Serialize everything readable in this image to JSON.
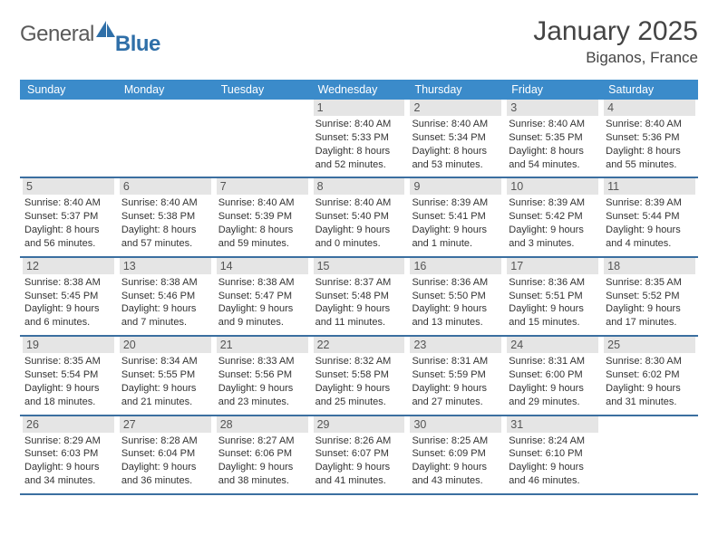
{
  "logo": {
    "general": "General",
    "blue": "Blue"
  },
  "title": "January 2025",
  "location": "Biganos, France",
  "colors": {
    "header_bg": "#3b8bca",
    "header_fg": "#ffffff",
    "daynum_bg": "#e5e5e5",
    "daynum_fg": "#555555",
    "week_border": "#3b6fa0",
    "text": "#333333",
    "logo_gray": "#5a5a5a",
    "logo_blue": "#2f6fa8"
  },
  "day_headers": [
    "Sunday",
    "Monday",
    "Tuesday",
    "Wednesday",
    "Thursday",
    "Friday",
    "Saturday"
  ],
  "weeks": [
    [
      {
        "day": "",
        "sunrise": "",
        "sunset": "",
        "daylight": ""
      },
      {
        "day": "",
        "sunrise": "",
        "sunset": "",
        "daylight": ""
      },
      {
        "day": "",
        "sunrise": "",
        "sunset": "",
        "daylight": ""
      },
      {
        "day": "1",
        "sunrise": "Sunrise: 8:40 AM",
        "sunset": "Sunset: 5:33 PM",
        "daylight": "Daylight: 8 hours and 52 minutes."
      },
      {
        "day": "2",
        "sunrise": "Sunrise: 8:40 AM",
        "sunset": "Sunset: 5:34 PM",
        "daylight": "Daylight: 8 hours and 53 minutes."
      },
      {
        "day": "3",
        "sunrise": "Sunrise: 8:40 AM",
        "sunset": "Sunset: 5:35 PM",
        "daylight": "Daylight: 8 hours and 54 minutes."
      },
      {
        "day": "4",
        "sunrise": "Sunrise: 8:40 AM",
        "sunset": "Sunset: 5:36 PM",
        "daylight": "Daylight: 8 hours and 55 minutes."
      }
    ],
    [
      {
        "day": "5",
        "sunrise": "Sunrise: 8:40 AM",
        "sunset": "Sunset: 5:37 PM",
        "daylight": "Daylight: 8 hours and 56 minutes."
      },
      {
        "day": "6",
        "sunrise": "Sunrise: 8:40 AM",
        "sunset": "Sunset: 5:38 PM",
        "daylight": "Daylight: 8 hours and 57 minutes."
      },
      {
        "day": "7",
        "sunrise": "Sunrise: 8:40 AM",
        "sunset": "Sunset: 5:39 PM",
        "daylight": "Daylight: 8 hours and 59 minutes."
      },
      {
        "day": "8",
        "sunrise": "Sunrise: 8:40 AM",
        "sunset": "Sunset: 5:40 PM",
        "daylight": "Daylight: 9 hours and 0 minutes."
      },
      {
        "day": "9",
        "sunrise": "Sunrise: 8:39 AM",
        "sunset": "Sunset: 5:41 PM",
        "daylight": "Daylight: 9 hours and 1 minute."
      },
      {
        "day": "10",
        "sunrise": "Sunrise: 8:39 AM",
        "sunset": "Sunset: 5:42 PM",
        "daylight": "Daylight: 9 hours and 3 minutes."
      },
      {
        "day": "11",
        "sunrise": "Sunrise: 8:39 AM",
        "sunset": "Sunset: 5:44 PM",
        "daylight": "Daylight: 9 hours and 4 minutes."
      }
    ],
    [
      {
        "day": "12",
        "sunrise": "Sunrise: 8:38 AM",
        "sunset": "Sunset: 5:45 PM",
        "daylight": "Daylight: 9 hours and 6 minutes."
      },
      {
        "day": "13",
        "sunrise": "Sunrise: 8:38 AM",
        "sunset": "Sunset: 5:46 PM",
        "daylight": "Daylight: 9 hours and 7 minutes."
      },
      {
        "day": "14",
        "sunrise": "Sunrise: 8:38 AM",
        "sunset": "Sunset: 5:47 PM",
        "daylight": "Daylight: 9 hours and 9 minutes."
      },
      {
        "day": "15",
        "sunrise": "Sunrise: 8:37 AM",
        "sunset": "Sunset: 5:48 PM",
        "daylight": "Daylight: 9 hours and 11 minutes."
      },
      {
        "day": "16",
        "sunrise": "Sunrise: 8:36 AM",
        "sunset": "Sunset: 5:50 PM",
        "daylight": "Daylight: 9 hours and 13 minutes."
      },
      {
        "day": "17",
        "sunrise": "Sunrise: 8:36 AM",
        "sunset": "Sunset: 5:51 PM",
        "daylight": "Daylight: 9 hours and 15 minutes."
      },
      {
        "day": "18",
        "sunrise": "Sunrise: 8:35 AM",
        "sunset": "Sunset: 5:52 PM",
        "daylight": "Daylight: 9 hours and 17 minutes."
      }
    ],
    [
      {
        "day": "19",
        "sunrise": "Sunrise: 8:35 AM",
        "sunset": "Sunset: 5:54 PM",
        "daylight": "Daylight: 9 hours and 18 minutes."
      },
      {
        "day": "20",
        "sunrise": "Sunrise: 8:34 AM",
        "sunset": "Sunset: 5:55 PM",
        "daylight": "Daylight: 9 hours and 21 minutes."
      },
      {
        "day": "21",
        "sunrise": "Sunrise: 8:33 AM",
        "sunset": "Sunset: 5:56 PM",
        "daylight": "Daylight: 9 hours and 23 minutes."
      },
      {
        "day": "22",
        "sunrise": "Sunrise: 8:32 AM",
        "sunset": "Sunset: 5:58 PM",
        "daylight": "Daylight: 9 hours and 25 minutes."
      },
      {
        "day": "23",
        "sunrise": "Sunrise: 8:31 AM",
        "sunset": "Sunset: 5:59 PM",
        "daylight": "Daylight: 9 hours and 27 minutes."
      },
      {
        "day": "24",
        "sunrise": "Sunrise: 8:31 AM",
        "sunset": "Sunset: 6:00 PM",
        "daylight": "Daylight: 9 hours and 29 minutes."
      },
      {
        "day": "25",
        "sunrise": "Sunrise: 8:30 AM",
        "sunset": "Sunset: 6:02 PM",
        "daylight": "Daylight: 9 hours and 31 minutes."
      }
    ],
    [
      {
        "day": "26",
        "sunrise": "Sunrise: 8:29 AM",
        "sunset": "Sunset: 6:03 PM",
        "daylight": "Daylight: 9 hours and 34 minutes."
      },
      {
        "day": "27",
        "sunrise": "Sunrise: 8:28 AM",
        "sunset": "Sunset: 6:04 PM",
        "daylight": "Daylight: 9 hours and 36 minutes."
      },
      {
        "day": "28",
        "sunrise": "Sunrise: 8:27 AM",
        "sunset": "Sunset: 6:06 PM",
        "daylight": "Daylight: 9 hours and 38 minutes."
      },
      {
        "day": "29",
        "sunrise": "Sunrise: 8:26 AM",
        "sunset": "Sunset: 6:07 PM",
        "daylight": "Daylight: 9 hours and 41 minutes."
      },
      {
        "day": "30",
        "sunrise": "Sunrise: 8:25 AM",
        "sunset": "Sunset: 6:09 PM",
        "daylight": "Daylight: 9 hours and 43 minutes."
      },
      {
        "day": "31",
        "sunrise": "Sunrise: 8:24 AM",
        "sunset": "Sunset: 6:10 PM",
        "daylight": "Daylight: 9 hours and 46 minutes."
      },
      {
        "day": "",
        "sunrise": "",
        "sunset": "",
        "daylight": ""
      }
    ]
  ]
}
